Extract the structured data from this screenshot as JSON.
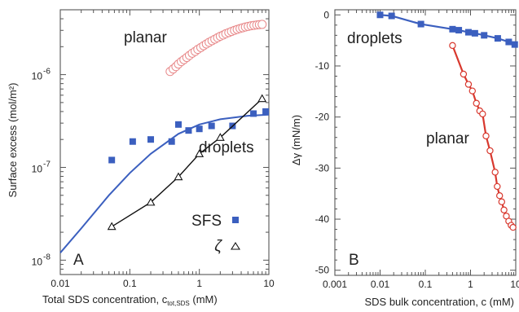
{
  "chart_data": [
    {
      "type": "scatter",
      "panel_label": "A",
      "xlabel": "Total SDS concentration, c",
      "xlabel_sub": "tot,SDS",
      "xlabel_unit": "(mM)",
      "ylabel": "Surface excess (mol/m²)",
      "xscale": "log",
      "yscale": "log",
      "xlim": [
        0.01,
        10
      ],
      "ylim": [
        7e-09,
        5e-06
      ],
      "x_ticks": [
        0.01,
        0.1,
        1,
        10
      ],
      "x_tick_labels": [
        "0.01",
        "0.1",
        "1",
        "10"
      ],
      "y_ticks": [
        1e-08,
        1e-07,
        1e-06
      ],
      "y_tick_labels": [
        {
          "base": "10",
          "exp": "-8"
        },
        {
          "base": "10",
          "exp": "-7"
        },
        {
          "base": "10",
          "exp": "-6"
        }
      ],
      "series": [
        {
          "name": "planar",
          "style": "open-circles",
          "color": "#e8898a",
          "x": [
            0.38,
            0.42,
            0.46,
            0.5,
            0.55,
            0.6,
            0.66,
            0.72,
            0.79,
            0.87,
            0.95,
            1.05,
            1.15,
            1.26,
            1.38,
            1.52,
            1.67,
            1.83,
            2.0,
            2.2,
            2.4,
            2.65,
            2.9,
            3.2,
            3.5,
            3.85,
            4.2,
            4.6,
            5.05,
            5.55,
            6.1,
            6.7,
            7.3,
            8.0
          ],
          "y": [
            1.08e-06,
            1.15e-06,
            1.22e-06,
            1.3e-06,
            1.38e-06,
            1.45e-06,
            1.53e-06,
            1.61e-06,
            1.7e-06,
            1.78e-06,
            1.87e-06,
            1.96e-06,
            2.05e-06,
            2.14e-06,
            2.23e-06,
            2.32e-06,
            2.41e-06,
            2.5e-06,
            2.59e-06,
            2.67e-06,
            2.76e-06,
            2.84e-06,
            2.92e-06,
            3e-06,
            3.07e-06,
            3.14e-06,
            3.2e-06,
            3.26e-06,
            3.31e-06,
            3.36e-06,
            3.4e-06,
            3.43e-06,
            3.46e-06,
            3.48e-06
          ]
        },
        {
          "name": "SFS",
          "style": "filled-squares",
          "color": "#3b5fbf",
          "x": [
            0.055,
            0.11,
            0.2,
            0.4,
            0.5,
            0.7,
            1.0,
            1.5,
            3.0,
            6.0,
            9.0
          ],
          "y": [
            1.2e-07,
            1.9e-07,
            2e-07,
            1.9e-07,
            2.9e-07,
            2.5e-07,
            2.6e-07,
            2.8e-07,
            2.8e-07,
            3.8e-07,
            4e-07
          ]
        },
        {
          "name": "ζ",
          "style": "open-triangles-line",
          "color": "#111111",
          "x": [
            0.055,
            0.2,
            0.5,
            1.0,
            2.0,
            8.0
          ],
          "y": [
            2.3e-08,
            4.2e-08,
            7.9e-08,
            1.4e-07,
            2.1e-07,
            5.5e-07
          ]
        },
        {
          "name": "fit",
          "style": "line",
          "color": "#3b5fbf",
          "x": [
            0.01,
            0.02,
            0.05,
            0.1,
            0.2,
            0.5,
            1,
            2,
            5,
            10
          ],
          "y": [
            1.2e-08,
            2.2e-08,
            5e-08,
            8.7e-08,
            1.4e-07,
            2.3e-07,
            2.9e-07,
            3.3e-07,
            3.6e-07,
            3.7e-07
          ]
        }
      ],
      "annotations": [
        "planar",
        "droplets"
      ],
      "legend": [
        {
          "label": "SFS",
          "marker": "filled-square"
        },
        {
          "label": "ζ",
          "marker": "open-triangle"
        }
      ]
    },
    {
      "type": "line",
      "panel_label": "B",
      "xlabel": "SDS bulk concentration, c (mM)",
      "ylabel": "Δγ (mN/m)",
      "xscale": "log",
      "xlim": [
        0.001,
        10
      ],
      "ylim": [
        -51,
        1
      ],
      "x_ticks": [
        0.001,
        0.01,
        0.1,
        1,
        10
      ],
      "x_tick_labels": [
        "0.001",
        "0.01",
        "0.1",
        "1",
        "10"
      ],
      "y_ticks": [
        0,
        -10,
        -20,
        -30,
        -40,
        -50
      ],
      "y_tick_labels": [
        "0",
        "-10",
        "-20",
        "-30",
        "-40",
        "-50"
      ],
      "series": [
        {
          "name": "droplets",
          "style": "filled-squares-line",
          "color": "#3b5fbf",
          "x": [
            0.01,
            0.018,
            0.08,
            0.4,
            0.55,
            0.9,
            1.25,
            2.0,
            4.0,
            7.0,
            9.5
          ],
          "y": [
            0,
            -0.2,
            -1.8,
            -2.8,
            -3.0,
            -3.4,
            -3.6,
            -4.0,
            -4.6,
            -5.3,
            -5.8
          ]
        },
        {
          "name": "planar",
          "style": "open-circles-line",
          "color": "#d8382e",
          "x": [
            0.4,
            0.7,
            0.9,
            1.1,
            1.35,
            1.6,
            1.85,
            2.2,
            2.7,
            3.5,
            3.9,
            4.4,
            4.9,
            5.5,
            6.2,
            7.0,
            7.9,
            8.7
          ],
          "y": [
            -6.0,
            -11.6,
            -13.6,
            -14.9,
            -17.3,
            -18.8,
            -19.4,
            -23.7,
            -26.6,
            -30.8,
            -33.6,
            -35.4,
            -36.6,
            -38.2,
            -39.4,
            -40.4,
            -41.2,
            -41.6
          ]
        }
      ],
      "annotations": [
        "droplets",
        "planar"
      ]
    }
  ]
}
